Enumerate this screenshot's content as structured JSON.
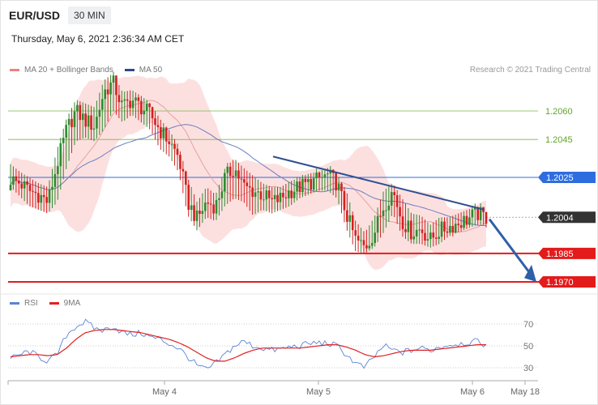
{
  "header": {
    "symbol": "EUR/USD",
    "timeframe": "30 MIN"
  },
  "datetime": "Thursday, May 6, 2021 2:36:34 AM CET",
  "credit": "Research © 2021 Trading Central",
  "legend_top": [
    {
      "label": "MA 20 + Bollinger Bands",
      "color": "#f08080"
    },
    {
      "label": "MA 50",
      "color": "#2e4a86"
    }
  ],
  "legend_bottom": [
    {
      "label": "RSI",
      "color": "#5b84d6"
    },
    {
      "label": "9MA",
      "color": "#e02020"
    }
  ],
  "chart_data": [
    {
      "type": "candlestick",
      "title": "EUR/USD 30 MIN",
      "ylim": [
        1.1966,
        1.2083
      ],
      "x_ticks": [
        "May 4",
        "May 5",
        "May 6",
        "May 18"
      ],
      "price_levels": [
        {
          "value": 1.206,
          "label": "1.2060",
          "kind": "resistance-line",
          "color": "#7ab648"
        },
        {
          "value": 1.2045,
          "label": "1.2045",
          "kind": "resistance-line",
          "color": "#7ab648"
        },
        {
          "value": 1.2025,
          "label": "1.2025",
          "kind": "pivot",
          "color": "#2e6de0"
        },
        {
          "value": 1.2004,
          "label": "1.2004",
          "kind": "last-price",
          "color": "#333333"
        },
        {
          "value": 1.1985,
          "label": "1.1985",
          "kind": "target",
          "color": "#e31b1b"
        },
        {
          "value": 1.197,
          "label": "1.1970",
          "kind": "target",
          "color": "#e31b1b"
        }
      ],
      "ohlc_anchors": [
        [
          1.2024,
          1.2032,
          1.202
        ],
        [
          1.2022,
          1.2028,
          1.2015
        ],
        [
          1.2018,
          1.2025,
          1.201
        ],
        [
          1.2016,
          1.2022,
          1.2008
        ],
        [
          1.2012,
          1.202,
          1.2006
        ],
        [
          1.2032,
          1.204,
          1.2012
        ],
        [
          1.205,
          1.2056,
          1.203
        ],
        [
          1.206,
          1.2066,
          1.2044
        ],
        [
          1.2055,
          1.2064,
          1.2046
        ],
        [
          1.2052,
          1.2062,
          1.2044
        ],
        [
          1.207,
          1.2076,
          1.205
        ],
        [
          1.2075,
          1.208,
          1.206
        ],
        [
          1.2062,
          1.207,
          1.2054
        ],
        [
          1.2066,
          1.2071,
          1.2058
        ],
        [
          1.2062,
          1.2068,
          1.2054
        ],
        [
          1.2058,
          1.2064,
          1.205
        ],
        [
          1.205,
          1.2056,
          1.204
        ],
        [
          1.2044,
          1.205,
          1.2036
        ],
        [
          1.2036,
          1.2042,
          1.2028
        ],
        [
          1.2012,
          1.2025,
          1.2005
        ],
        [
          1.2003,
          1.2012,
          1.1997
        ],
        [
          1.2012,
          1.202,
          1.2004
        ],
        [
          1.201,
          1.2016,
          1.2002
        ],
        [
          1.2025,
          1.203,
          1.201
        ],
        [
          1.203,
          1.2035,
          1.2014
        ],
        [
          1.202,
          1.203,
          1.2012
        ],
        [
          1.2018,
          1.2026,
          1.2005
        ],
        [
          1.2016,
          1.2022,
          1.2008
        ],
        [
          1.2012,
          1.202,
          1.2006
        ],
        [
          1.2014,
          1.202,
          1.2008
        ],
        [
          1.2018,
          1.2023,
          1.201
        ],
        [
          1.202,
          1.2025,
          1.2014
        ],
        [
          1.2022,
          1.2027,
          1.2016
        ],
        [
          1.2024,
          1.2028,
          1.2018
        ],
        [
          1.2026,
          1.203,
          1.2018
        ],
        [
          1.2022,
          1.2027,
          1.2014
        ],
        [
          1.2006,
          1.2018,
          1.1998
        ],
        [
          1.1992,
          1.2002,
          1.1986
        ],
        [
          1.1988,
          1.1996,
          1.1985
        ],
        [
          1.1996,
          1.2004,
          1.1988
        ],
        [
          1.201,
          1.2018,
          1.1996
        ],
        [
          1.2018,
          1.2022,
          1.2006
        ],
        [
          1.2002,
          1.2014,
          1.1994
        ],
        [
          1.1996,
          1.2006,
          1.199
        ],
        [
          1.1998,
          1.2005,
          1.199
        ],
        [
          1.1992,
          1.2,
          1.1988
        ],
        [
          1.1997,
          1.2004,
          1.199
        ],
        [
          1.1999,
          1.2004,
          1.1994
        ],
        [
          1.2001,
          1.2006,
          1.1996
        ],
        [
          1.2003,
          1.2008,
          1.1998
        ],
        [
          1.2006,
          1.201,
          1.2
        ],
        [
          1.2004,
          1.2007,
          1.2
        ]
      ],
      "series": [
        {
          "name": "MA 20 + Bollinger Bands",
          "values_note": ""
        },
        {
          "name": "MA 50"
        }
      ]
    },
    {
      "type": "line",
      "title": "RSI",
      "ylim": [
        25,
        75
      ],
      "y_ticks": [
        70,
        50,
        30
      ],
      "series": [
        {
          "name": "RSI",
          "values": [
            38,
            42,
            45,
            40,
            36,
            42,
            60,
            68,
            72,
            66,
            64,
            68,
            62,
            60,
            62,
            58,
            56,
            52,
            48,
            40,
            32,
            28,
            34,
            42,
            50,
            54,
            50,
            48,
            46,
            47,
            49,
            50,
            52,
            53,
            52,
            50,
            42,
            34,
            30,
            40,
            50,
            46,
            44,
            46,
            48,
            46,
            49,
            51,
            52,
            53,
            54,
            51
          ]
        },
        {
          "name": "9MA",
          "values": [
            40,
            41,
            42,
            42,
            41,
            42,
            48,
            56,
            62,
            64,
            65,
            65,
            64,
            63,
            62,
            60,
            58,
            56,
            53,
            49,
            44,
            39,
            36,
            36,
            39,
            43,
            46,
            48,
            48,
            48,
            48,
            48,
            49,
            50,
            51,
            51,
            49,
            46,
            42,
            40,
            41,
            43,
            45,
            46,
            46,
            46,
            47,
            48,
            49,
            50,
            51,
            51
          ]
        }
      ]
    }
  ]
}
